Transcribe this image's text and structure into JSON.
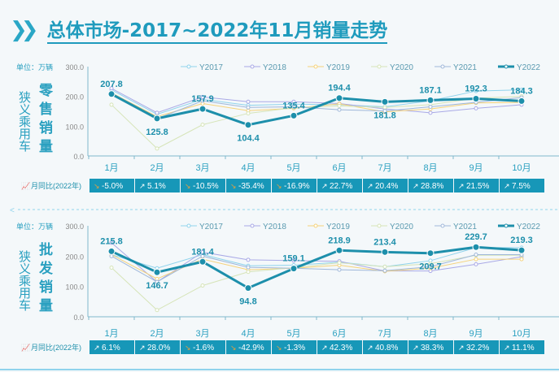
{
  "title": "总体市场-2017~2022年11月销量走势",
  "colors": {
    "accent": "#1a9ab8",
    "line2022": "#1d8fab",
    "row": "#1797b8",
    "Y2017": "#8fd3ec",
    "Y2018": "#a9a9e6",
    "Y2019": "#f5d27a",
    "Y2020": "#d6e4b8",
    "Y2021": "#9fb7d9"
  },
  "chart_data": [
    {
      "type": "line",
      "unit_label": "单位：万辆",
      "side_label": "狭义乘用车",
      "chart_label": "零售销量",
      "ratio_label": "月同比(2022年)",
      "ylim": [
        0,
        300
      ],
      "yticks": [
        "0.0",
        "100.0",
        "200.0",
        "300.0"
      ],
      "categories": [
        "1月",
        "2月",
        "3月",
        "4月",
        "5月",
        "6月",
        "7月",
        "8月",
        "9月",
        "10月"
      ],
      "series": [
        {
          "name": "Y2017",
          "values": [
            222,
            140,
            190,
            170,
            174,
            172,
            165,
            185,
            218,
            222
          ]
        },
        {
          "name": "Y2018",
          "values": [
            227,
            145,
            198,
            182,
            182,
            176,
            158,
            145,
            160,
            172
          ]
        },
        {
          "name": "Y2019",
          "values": [
            212,
            132,
            176,
            152,
            160,
            175,
            148,
            158,
            178,
            180
          ]
        },
        {
          "name": "Y2020",
          "values": [
            172,
            25,
            105,
            143,
            162,
            168,
            163,
            172,
            194,
            200
          ]
        },
        {
          "name": "Y2021",
          "values": [
            208,
            125,
            185,
            163,
            165,
            155,
            151,
            165,
            180,
            196
          ]
        },
        {
          "name": "Y2022",
          "values": [
            207.8,
            125.8,
            157.9,
            104.4,
            135.4,
            194.4,
            181.8,
            187.1,
            192.3,
            184.3
          ]
        }
      ],
      "labels": [
        "207.8",
        "125.8",
        "157.9",
        "104.4",
        "135.4",
        "194.4",
        "181.8",
        "187.1",
        "192.3",
        "184.3"
      ],
      "yoy": [
        "-5.0%",
        "5.1%",
        "-10.5%",
        "-35.4%",
        "-16.9%",
        "22.7%",
        "20.4%",
        "28.8%",
        "21.5%",
        "7.5%"
      ],
      "yoy_dir": [
        "down",
        "up",
        "down",
        "down",
        "down",
        "up",
        "up",
        "up",
        "up",
        "up"
      ]
    },
    {
      "type": "line",
      "unit_label": "单位：万辆",
      "side_label": "狭义乘用车",
      "chart_label": "批发销量",
      "ratio_label": "月同比(2022年)",
      "ylim": [
        0,
        300
      ],
      "yticks": [
        "0.0",
        "100.0",
        "200.0",
        "300.0"
      ],
      "categories": [
        "1月",
        "2月",
        "3月",
        "4月",
        "5月",
        "6月",
        "7月",
        "8月",
        "9月",
        "10月"
      ],
      "series": [
        {
          "name": "Y2017",
          "values": [
            205,
            160,
            205,
            168,
            170,
            180,
            165,
            185,
            228,
            228
          ]
        },
        {
          "name": "Y2018",
          "values": [
            244,
            115,
            213,
            188,
            185,
            183,
            151,
            151,
            173,
            198
          ]
        },
        {
          "name": "Y2019",
          "values": [
            205,
            125,
            190,
            155,
            160,
            170,
            150,
            160,
            190,
            190
          ]
        },
        {
          "name": "Y2020",
          "values": [
            162,
            22,
            103,
            148,
            162,
            178,
            165,
            175,
            203,
            203
          ]
        },
        {
          "name": "Y2021",
          "values": [
            200,
            115,
            200,
            163,
            160,
            155,
            152,
            165,
            205,
            205
          ]
        },
        {
          "name": "Y2022",
          "values": [
            215.8,
            146.7,
            181.4,
            94.8,
            159.1,
            218.9,
            213.4,
            209.7,
            229.7,
            219.3
          ]
        }
      ],
      "labels": [
        "215.8",
        "146.7",
        "181.4",
        "94.8",
        "159.1",
        "218.9",
        "213.4",
        "209.7",
        "229.7",
        "219.3"
      ],
      "yoy": [
        "6.1%",
        "28.0%",
        "-1.6%",
        "-42.9%",
        "-1.3%",
        "42.3%",
        "40.8%",
        "38.3%",
        "32.2%",
        "11.1%"
      ],
      "yoy_dir": [
        "up",
        "up",
        "down",
        "down",
        "down",
        "up",
        "up",
        "up",
        "up",
        "up"
      ]
    }
  ]
}
